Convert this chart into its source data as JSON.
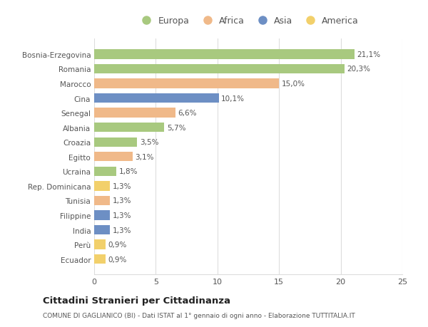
{
  "countries": [
    "Bosnia-Erzegovina",
    "Romania",
    "Marocco",
    "Cina",
    "Senegal",
    "Albania",
    "Croazia",
    "Egitto",
    "Ucraina",
    "Rep. Dominicana",
    "Tunisia",
    "Filippine",
    "India",
    "Perù",
    "Ecuador"
  ],
  "values": [
    21.1,
    20.3,
    15.0,
    10.1,
    6.6,
    5.7,
    3.5,
    3.1,
    1.8,
    1.3,
    1.3,
    1.3,
    1.3,
    0.9,
    0.9
  ],
  "labels": [
    "21,1%",
    "20,3%",
    "15,0%",
    "10,1%",
    "6,6%",
    "5,7%",
    "3,5%",
    "3,1%",
    "1,8%",
    "1,3%",
    "1,3%",
    "1,3%",
    "1,3%",
    "0,9%",
    "0,9%"
  ],
  "colors": [
    "#a8c97f",
    "#a8c97f",
    "#f0b989",
    "#6d8fc4",
    "#f0b989",
    "#a8c97f",
    "#a8c97f",
    "#f0b989",
    "#a8c97f",
    "#f2d06b",
    "#f0b989",
    "#6d8fc4",
    "#6d8fc4",
    "#f2d06b",
    "#f2d06b"
  ],
  "legend_labels": [
    "Europa",
    "Africa",
    "Asia",
    "America"
  ],
  "legend_colors": [
    "#a8c97f",
    "#f0b989",
    "#6d8fc4",
    "#f2d06b"
  ],
  "xlim": [
    0,
    25
  ],
  "xticks": [
    0,
    5,
    10,
    15,
    20,
    25
  ],
  "title": "Cittadini Stranieri per Cittadinanza",
  "subtitle": "COMUNE DI GAGLIANICO (BI) - Dati ISTAT al 1° gennaio di ogni anno - Elaborazione TUTTITALIA.IT",
  "bg_color": "#ffffff",
  "grid_color": "#dddddd"
}
